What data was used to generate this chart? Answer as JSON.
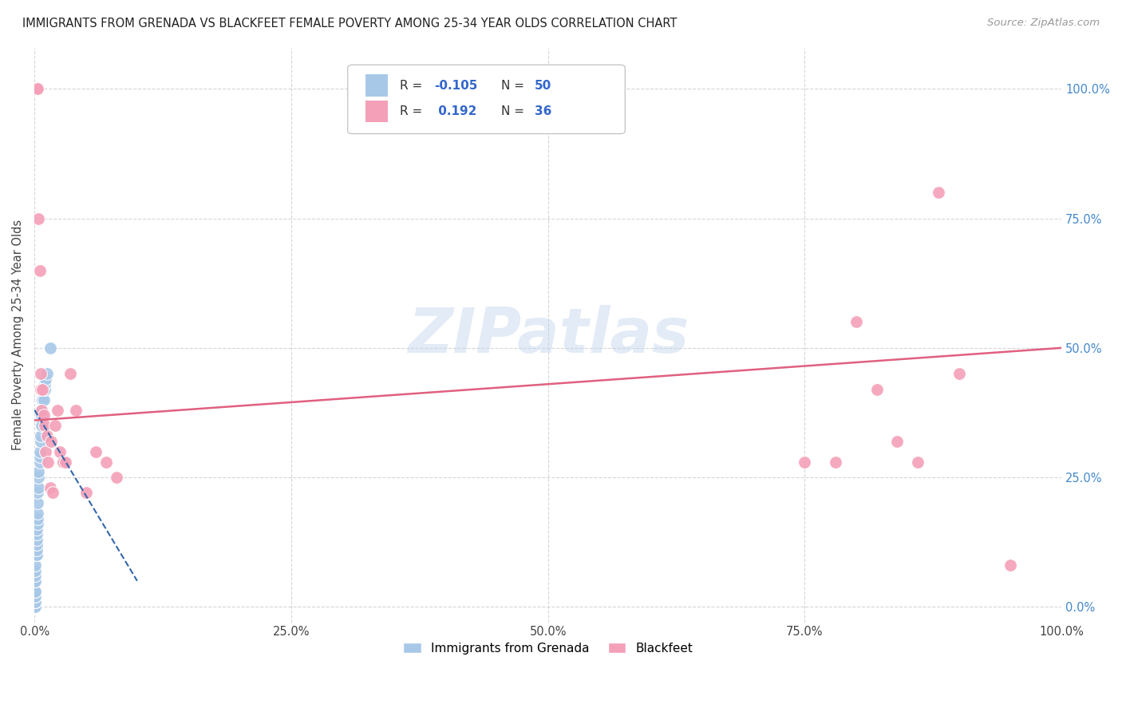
{
  "title": "IMMIGRANTS FROM GRENADA VS BLACKFEET FEMALE POVERTY AMONG 25-34 YEAR OLDS CORRELATION CHART",
  "source": "Source: ZipAtlas.com",
  "ylabel": "Female Poverty Among 25-34 Year Olds",
  "legend_label1": "Immigrants from Grenada",
  "legend_label2": "Blackfeet",
  "R1": -0.105,
  "N1": 50,
  "R2": 0.192,
  "N2": 36,
  "color1": "#a8c8e8",
  "color2": "#f4a0b8",
  "line_color1": "#3366aa",
  "line_color2": "#e06080",
  "grenada_x": [
    0.001,
    0.001,
    0.001,
    0.001,
    0.001,
    0.001,
    0.001,
    0.001,
    0.001,
    0.001,
    0.001,
    0.001,
    0.001,
    0.001,
    0.001,
    0.001,
    0.001,
    0.001,
    0.001,
    0.002,
    0.002,
    0.002,
    0.002,
    0.002,
    0.002,
    0.002,
    0.002,
    0.003,
    0.003,
    0.003,
    0.003,
    0.003,
    0.004,
    0.004,
    0.004,
    0.005,
    0.005,
    0.005,
    0.006,
    0.006,
    0.007,
    0.007,
    0.008,
    0.008,
    0.009,
    0.01,
    0.01,
    0.011,
    0.012,
    0.015
  ],
  "grenada_y": [
    0.0,
    0.0,
    0.0,
    0.0,
    0.0,
    0.0,
    0.0,
    0.01,
    0.01,
    0.01,
    0.02,
    0.02,
    0.03,
    0.03,
    0.05,
    0.05,
    0.06,
    0.07,
    0.08,
    0.1,
    0.1,
    0.1,
    0.11,
    0.12,
    0.13,
    0.14,
    0.15,
    0.16,
    0.17,
    0.18,
    0.2,
    0.22,
    0.23,
    0.25,
    0.26,
    0.28,
    0.29,
    0.3,
    0.32,
    0.33,
    0.35,
    0.37,
    0.38,
    0.4,
    0.4,
    0.42,
    0.43,
    0.44,
    0.45,
    0.5
  ],
  "blackfeet_x": [
    0.002,
    0.003,
    0.004,
    0.005,
    0.006,
    0.006,
    0.007,
    0.008,
    0.009,
    0.01,
    0.011,
    0.012,
    0.013,
    0.015,
    0.016,
    0.018,
    0.02,
    0.022,
    0.025,
    0.028,
    0.03,
    0.035,
    0.04,
    0.05,
    0.06,
    0.07,
    0.08,
    0.75,
    0.78,
    0.8,
    0.82,
    0.84,
    0.86,
    0.88,
    0.9,
    0.95
  ],
  "blackfeet_y": [
    1.0,
    1.0,
    0.75,
    0.65,
    0.45,
    0.42,
    0.38,
    0.42,
    0.37,
    0.35,
    0.3,
    0.33,
    0.28,
    0.23,
    0.32,
    0.22,
    0.35,
    0.38,
    0.3,
    0.28,
    0.28,
    0.45,
    0.38,
    0.22,
    0.3,
    0.28,
    0.25,
    0.28,
    0.28,
    0.55,
    0.42,
    0.32,
    0.28,
    0.8,
    0.45,
    0.08
  ],
  "blue_line_x": [
    0.0,
    0.1
  ],
  "blue_line_y": [
    0.38,
    0.05
  ],
  "pink_line_x": [
    0.0,
    1.0
  ],
  "pink_line_y": [
    0.36,
    0.5
  ],
  "xlim": [
    0.0,
    1.0
  ],
  "ylim": [
    -0.03,
    1.08
  ],
  "xticks": [
    0.0,
    0.25,
    0.5,
    0.75,
    1.0
  ],
  "xtick_labels": [
    "0.0%",
    "25.0%",
    "50.0%",
    "75.0%",
    "100.0%"
  ],
  "yticks": [
    0.0,
    0.25,
    0.5,
    0.75,
    1.0
  ],
  "ytick_labels": [
    "0.0%",
    "25.0%",
    "50.0%",
    "75.0%",
    "100.0%"
  ]
}
